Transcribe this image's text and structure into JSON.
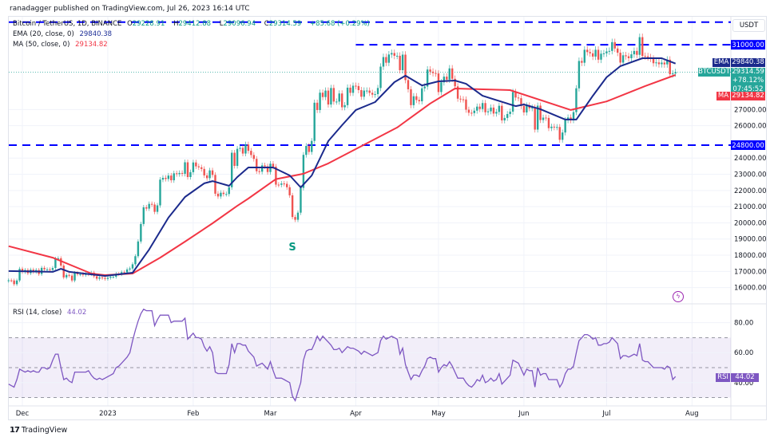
{
  "publisher_line": "ranadagger published on TradingView.com, Jul 26, 2023 16:14 UTC",
  "legend": {
    "symbol": "Bitcoin / TetherUS, 1D, BINANCE",
    "open_label": "O",
    "open": "29228.91",
    "high_label": "H",
    "high": "29412.88",
    "low_label": "L",
    "low": "29096.94",
    "close_label": "C",
    "close": "29314.59",
    "change": "+85.68 (+0.29%)",
    "ema_label": "EMA (20, close, 0)",
    "ema_value": "29840.38",
    "ma_label": "MA (50, close, 0)",
    "ma_value": "29134.82",
    "rsi_label": "RSI (14, close)",
    "rsi_value": "44.02"
  },
  "price_axis": {
    "currency": "USDT",
    "ticks": [
      "27000.00",
      "26000.00",
      "24000.00",
      "23000.00",
      "22000.00",
      "21000.00",
      "20000.00",
      "19000.00",
      "18000.00",
      "17000.00",
      "16000.00"
    ],
    "tags": {
      "ema": {
        "label": "EMA",
        "value": "29840.38"
      },
      "symbol": {
        "label": "BTCUSDT",
        "value": "29314.59",
        "change": "+78.12%",
        "countdown": "07:45:52"
      },
      "ma": {
        "label": "MA",
        "value": "29134.82"
      }
    }
  },
  "rsi_axis": {
    "ticks": [
      "80.00",
      "60.00",
      "40.00"
    ],
    "tag_label": "RSI",
    "tag_value": "44.02"
  },
  "time_axis": [
    {
      "label": "Dec",
      "date": "2022-12-01"
    },
    {
      "label": "2023",
      "date": "2023-01-01"
    },
    {
      "label": "Feb",
      "date": "2023-02-01"
    },
    {
      "label": "Mar",
      "date": "2023-03-01"
    },
    {
      "label": "Apr",
      "date": "2023-04-01"
    },
    {
      "label": "May",
      "date": "2023-05-01"
    },
    {
      "label": "Jun",
      "date": "2023-06-01"
    },
    {
      "label": "Jul",
      "date": "2023-07-01"
    },
    {
      "label": "Aug",
      "date": "2023-08-01"
    }
  ],
  "annotation": {
    "text": "S",
    "date": "2023-03-09",
    "price": 18500,
    "color": "#089981"
  },
  "footer_brand": "TradingView",
  "colors": {
    "up": "#26a69a",
    "down": "#ef5350",
    "ema": "#1b2a8c",
    "ma": "#f23645",
    "rsi": "#7e57c2",
    "levels": "#0000ff",
    "symbol_tag": "#26a69a"
  },
  "chart_data": {
    "type": "candlestick",
    "symbol": "Bitcoin / TetherUS, 1D, BINANCE",
    "y_scale": "price (USDT)",
    "grid": true,
    "candles": [
      {
        "month": "2022-11",
        "first_day": 26,
        "close": [
          16450,
          16440,
          16210,
          16440,
          17160
        ],
        "rsi": [
          39,
          38,
          37,
          42,
          49
        ]
      },
      {
        "month": "2022-12",
        "first_day": 1,
        "close": [
          16970,
          17090,
          16890,
          17110,
          16970,
          17090,
          16840,
          17220,
          17130,
          17130,
          17090,
          17210,
          17780,
          17810,
          17360,
          16630,
          16780,
          16740,
          16440,
          16900,
          16820,
          16830,
          16780,
          16840,
          16830,
          16920,
          16700,
          16550,
          16630,
          16600,
          16540
        ],
        "rsi": [
          48,
          47,
          48,
          47,
          48,
          47,
          47,
          50,
          50,
          49,
          50,
          55,
          59,
          59,
          50,
          42,
          43,
          41,
          40,
          47,
          47,
          47,
          47,
          47,
          48,
          45,
          43,
          42,
          43,
          42,
          43
        ]
      },
      {
        "month": "2023-01",
        "first_day": 1,
        "close": [
          16610,
          16670,
          16670,
          16850,
          16830,
          16950,
          16940,
          17120,
          17180,
          17440,
          17940,
          18850,
          19930,
          20960,
          20880,
          21170,
          21130,
          20680,
          21080,
          22670,
          22780,
          22710,
          22920,
          22630,
          23060,
          23010,
          23080,
          23030,
          23740,
          22830,
          23130
        ],
        "rsi": [
          44,
          45,
          46,
          50,
          51,
          53,
          55,
          57,
          60,
          68,
          75,
          81,
          86,
          89,
          88,
          88,
          88,
          78,
          82,
          85,
          85,
          85,
          85,
          80,
          81,
          81,
          81,
          81,
          83,
          69,
          71
        ]
      },
      {
        "month": "2023-02",
        "first_day": 1,
        "close": [
          23730,
          23490,
          23430,
          23330,
          22930,
          22760,
          23240,
          22960,
          21800,
          21630,
          21860,
          21780,
          21780,
          22200,
          24330,
          23520,
          24570,
          24630,
          24280,
          24840,
          24450,
          24190,
          23950,
          23190,
          23160,
          23550,
          23490,
          23140
        ],
        "rsi": [
          73,
          70,
          70,
          69,
          64,
          61,
          64,
          60,
          47,
          46,
          46,
          46,
          46,
          52,
          66,
          60,
          66,
          66,
          65,
          65,
          61,
          59,
          57,
          51,
          52,
          53,
          51,
          49
        ]
      },
      {
        "month": "2023-03",
        "first_day": 1,
        "close": [
          23650,
          23470,
          22360,
          22350,
          22430,
          22410,
          22200,
          21700,
          20360,
          20190,
          20630,
          22160,
          24200,
          24750,
          24380,
          25060,
          27420,
          26970,
          28040,
          27770,
          28170,
          27310,
          28330,
          27490,
          27490,
          27990,
          27140,
          27270,
          28350,
          28030,
          28470
        ],
        "rsi": [
          54,
          48,
          43,
          43,
          43,
          42,
          41,
          40,
          31,
          28,
          34,
          40,
          55,
          61,
          62,
          62,
          66,
          71,
          68,
          71,
          69,
          67,
          65,
          62,
          62,
          63,
          60,
          62,
          64,
          63,
          63
        ]
      },
      {
        "month": "2023-04",
        "first_day": 1,
        "close": [
          28450,
          28200,
          27790,
          28170,
          28170,
          28030,
          27920,
          27950,
          28330,
          29650,
          30240,
          29890,
          30400,
          30490,
          30320,
          30320,
          29430,
          30390,
          28820,
          28250,
          27270,
          27820,
          27590,
          27510,
          28310,
          28420,
          29470,
          29340,
          29250,
          29230
        ],
        "rsi": [
          62,
          61,
          59,
          61,
          60,
          59,
          58,
          59,
          60,
          68,
          71,
          69,
          70,
          71,
          70,
          69,
          59,
          63,
          52,
          47,
          42,
          45,
          45,
          44,
          48,
          51,
          56,
          57,
          56,
          56
        ]
      },
      {
        "month": "2023-05",
        "first_day": 1,
        "close": [
          28080,
          28680,
          29030,
          28850,
          29540,
          28900,
          28430,
          27670,
          27630,
          27620,
          26990,
          26800,
          26780,
          26930,
          27180,
          27030,
          27400,
          26830,
          26890,
          27120,
          26750,
          26850,
          27230,
          26330,
          26480,
          26720,
          26870,
          28080,
          27740,
          27700,
          27220
        ],
        "rsi": [
          47,
          50,
          52,
          51,
          54,
          51,
          47,
          43,
          43,
          43,
          40,
          38,
          37,
          39,
          42,
          41,
          45,
          40,
          41,
          43,
          41,
          42,
          46,
          39,
          41,
          43,
          45,
          55,
          54,
          53,
          49
        ]
      },
      {
        "month": "2023-06",
        "first_day": 1,
        "close": [
          26820,
          27250,
          27080,
          27120,
          25760,
          27240,
          26350,
          26500,
          26480,
          25850,
          25940,
          25900,
          25920,
          25130,
          25580,
          26340,
          26510,
          26340,
          26840,
          28310,
          30000,
          29890,
          30690,
          30550,
          30470,
          30270,
          30690,
          30080,
          30450,
          30470
        ],
        "rsi": [
          45,
          49,
          48,
          48,
          37,
          50,
          45,
          46,
          46,
          42,
          42,
          42,
          42,
          37,
          40,
          46,
          49,
          49,
          51,
          60,
          68,
          70,
          72,
          72,
          71,
          69,
          70,
          65,
          65,
          66
        ]
      },
      {
        "month": "2023-07",
        "first_day": 1,
        "close": [
          30590,
          30620,
          31160,
          30770,
          30510,
          29900,
          30350,
          30290,
          30170,
          30410,
          30620,
          30380,
          31470,
          30310,
          30290,
          30230,
          30140,
          29860,
          29910,
          29800,
          29900,
          29790,
          30080,
          29180,
          29230,
          29314.59
        ],
        "rsi": [
          66,
          67,
          70,
          68,
          66,
          56,
          58,
          58,
          57,
          58,
          59,
          58,
          66,
          55,
          54,
          54,
          52,
          50,
          50,
          50,
          50,
          49,
          51,
          50,
          42,
          44.02
        ]
      }
    ],
    "ema20": [
      [
        "2022-11-26",
        17020
      ],
      [
        "2022-12-12",
        16970
      ],
      [
        "2022-12-15",
        17160
      ],
      [
        "2022-12-18",
        16970
      ],
      [
        "2022-12-31",
        16720
      ],
      [
        "2023-01-10",
        16920
      ],
      [
        "2023-01-16",
        18350
      ],
      [
        "2023-01-23",
        20320
      ],
      [
        "2023-01-29",
        21600
      ],
      [
        "2023-02-05",
        22440
      ],
      [
        "2023-02-08",
        22580
      ],
      [
        "2023-02-14",
        22290
      ],
      [
        "2023-02-17",
        22830
      ],
      [
        "2023-02-21",
        23420
      ],
      [
        "2023-03-02",
        23420
      ],
      [
        "2023-03-08",
        22930
      ],
      [
        "2023-03-12",
        22190
      ],
      [
        "2023-03-16",
        22930
      ],
      [
        "2023-03-22",
        25050
      ],
      [
        "2023-03-27",
        26030
      ],
      [
        "2023-04-01",
        26970
      ],
      [
        "2023-04-08",
        27460
      ],
      [
        "2023-04-15",
        28690
      ],
      [
        "2023-04-19",
        29090
      ],
      [
        "2023-04-25",
        28490
      ],
      [
        "2023-05-01",
        28740
      ],
      [
        "2023-05-07",
        28790
      ],
      [
        "2023-05-11",
        28590
      ],
      [
        "2023-05-17",
        27850
      ],
      [
        "2023-05-29",
        27210
      ],
      [
        "2023-06-01",
        27310
      ],
      [
        "2023-06-07",
        27020
      ],
      [
        "2023-06-16",
        26380
      ],
      [
        "2023-06-20",
        26380
      ],
      [
        "2023-06-26",
        27850
      ],
      [
        "2023-07-01",
        28990
      ],
      [
        "2023-07-06",
        29680
      ],
      [
        "2023-07-14",
        30170
      ],
      [
        "2023-07-21",
        30170
      ],
      [
        "2023-07-26",
        29840.38
      ]
    ],
    "ma50": [
      [
        "2022-11-26",
        18560
      ],
      [
        "2022-12-12",
        17850
      ],
      [
        "2022-12-26",
        16870
      ],
      [
        "2022-12-31",
        16770
      ],
      [
        "2023-01-10",
        16870
      ],
      [
        "2023-01-20",
        17850
      ],
      [
        "2023-01-29",
        18840
      ],
      [
        "2023-02-08",
        19970
      ],
      [
        "2023-02-17",
        21050
      ],
      [
        "2023-02-21",
        21500
      ],
      [
        "2023-03-03",
        22700
      ],
      [
        "2023-03-13",
        23030
      ],
      [
        "2023-03-22",
        23670
      ],
      [
        "2023-04-01",
        24560
      ],
      [
        "2023-04-16",
        25890
      ],
      [
        "2023-04-28",
        27370
      ],
      [
        "2023-05-07",
        28300
      ],
      [
        "2023-05-27",
        28200
      ],
      [
        "2023-06-18",
        26970
      ],
      [
        "2023-07-01",
        27500
      ],
      [
        "2023-07-15",
        28450
      ],
      [
        "2023-07-26",
        29134.82
      ]
    ],
    "levels": [
      {
        "price": 32400,
        "from": "2022-11-26"
      },
      {
        "price": 31000,
        "label": "31000.00",
        "from": "2023-04-01"
      },
      {
        "price": 24800,
        "label": "24800.00",
        "from": "2022-11-26"
      }
    ],
    "rsi_bands": {
      "upper": 70,
      "middle": 50,
      "lower": 30
    }
  }
}
